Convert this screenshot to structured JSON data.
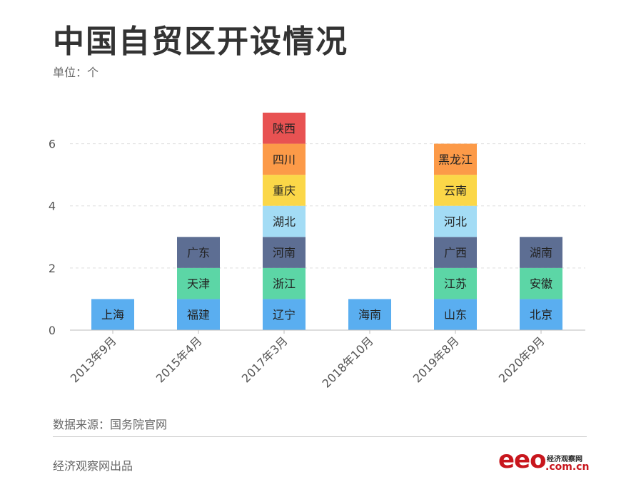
{
  "header": {
    "title": "中国自贸区开设情况",
    "unit": "单位：个"
  },
  "footer": {
    "source": "数据来源：国务院官网",
    "publisher": "经济观察网出品",
    "logo_main": "eeo",
    "logo_cn": "经济观察网",
    "logo_domain": ".com.cn"
  },
  "colors": {
    "blue": "#5aaef0",
    "green": "#5cd6a6",
    "navy": "#5d6e93",
    "lightblue": "#a3dcf5",
    "yellow": "#fbd748",
    "orange": "#fc9a48",
    "red": "#e85252",
    "grid": "#dddddd",
    "axis": "#bbbbbb"
  },
  "chart_data": {
    "type": "bar",
    "stacked": true,
    "categories": [
      "2013年9月",
      "2015年4月",
      "2017年3月",
      "2018年10月",
      "2019年8月",
      "2020年9月"
    ],
    "ylim": [
      0,
      7
    ],
    "yticks": [
      0,
      2,
      4,
      6
    ],
    "grid": true,
    "stacks": [
      [
        {
          "label": "上海",
          "color": "blue",
          "value": 1
        }
      ],
      [
        {
          "label": "福建",
          "color": "blue",
          "value": 1
        },
        {
          "label": "天津",
          "color": "green",
          "value": 1
        },
        {
          "label": "广东",
          "color": "navy",
          "value": 1
        }
      ],
      [
        {
          "label": "辽宁",
          "color": "blue",
          "value": 1
        },
        {
          "label": "浙江",
          "color": "green",
          "value": 1
        },
        {
          "label": "河南",
          "color": "navy",
          "value": 1
        },
        {
          "label": "湖北",
          "color": "lightblue",
          "value": 1
        },
        {
          "label": "重庆",
          "color": "yellow",
          "value": 1
        },
        {
          "label": "四川",
          "color": "orange",
          "value": 1
        },
        {
          "label": "陕西",
          "color": "red",
          "value": 1
        }
      ],
      [
        {
          "label": "海南",
          "color": "blue",
          "value": 1
        }
      ],
      [
        {
          "label": "山东",
          "color": "blue",
          "value": 1
        },
        {
          "label": "江苏",
          "color": "green",
          "value": 1
        },
        {
          "label": "广西",
          "color": "navy",
          "value": 1
        },
        {
          "label": "河北",
          "color": "lightblue",
          "value": 1
        },
        {
          "label": "云南",
          "color": "yellow",
          "value": 1
        },
        {
          "label": "黑龙江",
          "color": "orange",
          "value": 1
        }
      ],
      [
        {
          "label": "北京",
          "color": "blue",
          "value": 1
        },
        {
          "label": "安徽",
          "color": "green",
          "value": 1
        },
        {
          "label": "湖南",
          "color": "navy",
          "value": 1
        }
      ]
    ]
  }
}
